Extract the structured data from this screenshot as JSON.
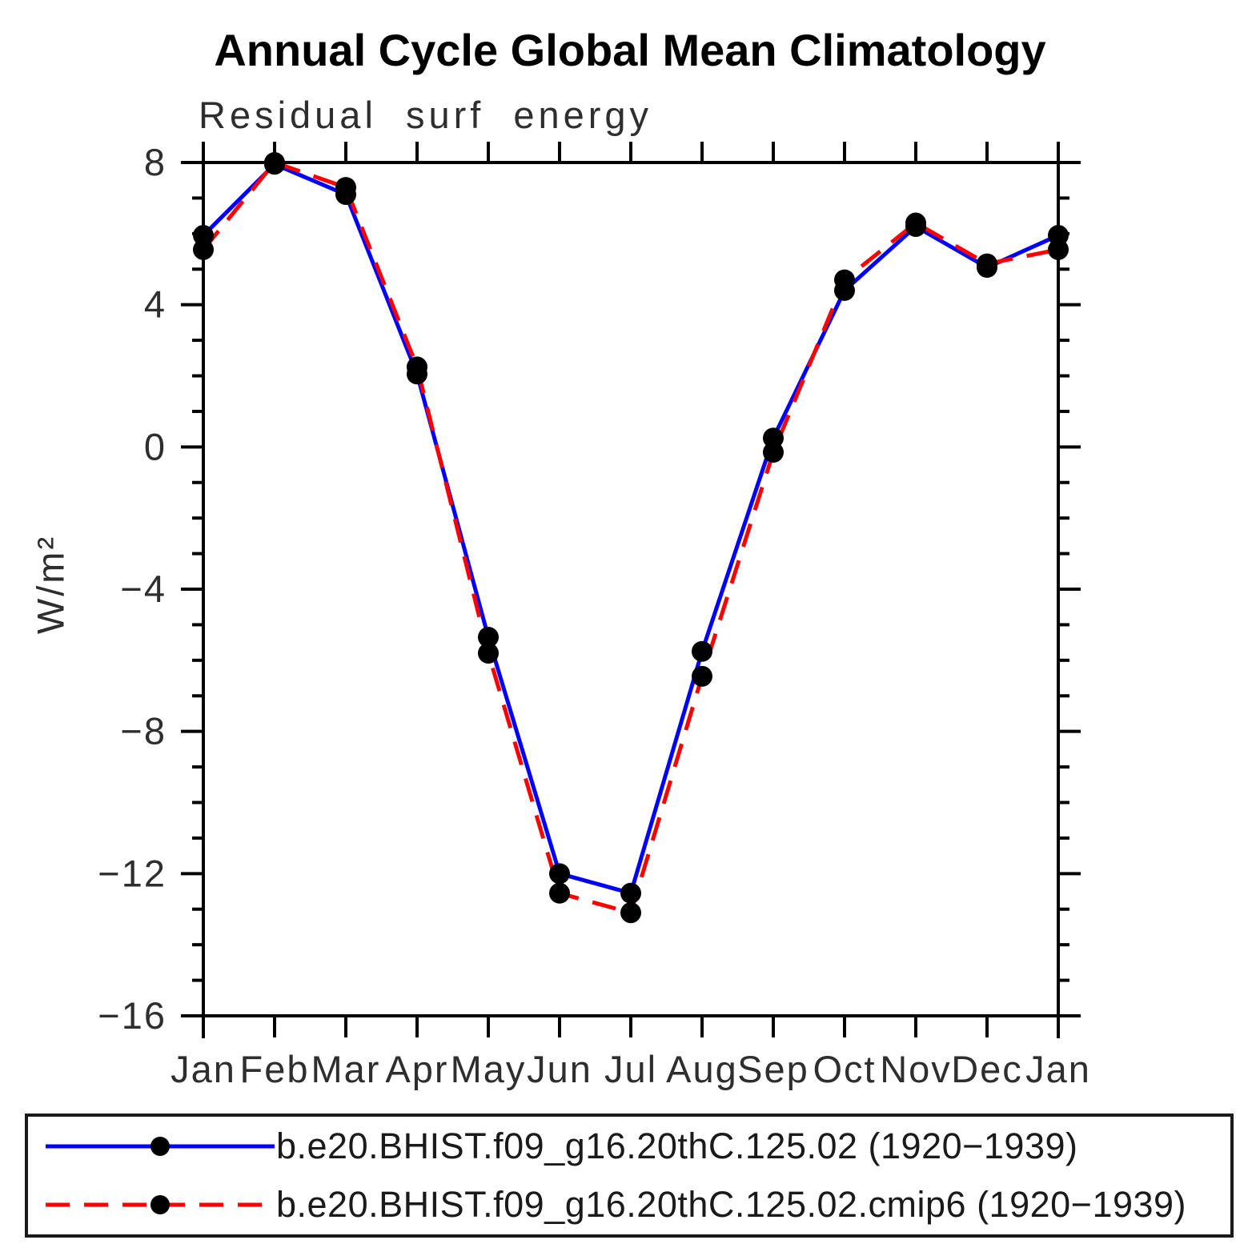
{
  "title": "Annual Cycle Global Mean Climatology",
  "subtitle": "Residual surf energy",
  "chart_data": {
    "type": "line",
    "title": "Annual Cycle Global Mean Climatology",
    "subtitle": "Residual surf energy",
    "xlabel": "",
    "ylabel": "W/m²",
    "x_categories": [
      "Jan",
      "Feb",
      "Mar",
      "Apr",
      "May",
      "Jun",
      "Jul",
      "Aug",
      "Sep",
      "Oct",
      "Nov",
      "Dec",
      "Jan"
    ],
    "ylim": [
      -16,
      8
    ],
    "ytick_major": [
      8,
      4,
      0,
      -4,
      -8,
      -12,
      -16
    ],
    "ytick_labels": [
      "8",
      "4",
      "0",
      "−4",
      "−8",
      "−12",
      "−16"
    ],
    "ytick_minor_step": 1,
    "grid": false,
    "legend_position": "bottom",
    "series": [
      {
        "name": "b.e20.BHIST.f09_g16.20thC.125.02 (1920−1939)",
        "color": "#0000ff",
        "line_style": "solid",
        "marker": "filled-circle",
        "marker_color": "#000000",
        "values": [
          5.95,
          7.95,
          7.1,
          2.05,
          -5.35,
          -12.0,
          -12.55,
          -5.75,
          0.25,
          4.4,
          6.2,
          5.05,
          5.95
        ]
      },
      {
        "name": "b.e20.BHIST.f09_g16.20thC.125.02.cmip6 (1920−1939)",
        "color": "#ff0000",
        "line_style": "dashed",
        "marker": "filled-circle",
        "marker_color": "#000000",
        "values": [
          5.55,
          8.0,
          7.3,
          2.25,
          -5.8,
          -12.55,
          -13.1,
          -6.45,
          -0.15,
          4.7,
          6.3,
          5.15,
          5.55
        ]
      }
    ]
  },
  "colors": {
    "axis": "#000000",
    "text": "#2e2e2e",
    "background": "#ffffff"
  }
}
